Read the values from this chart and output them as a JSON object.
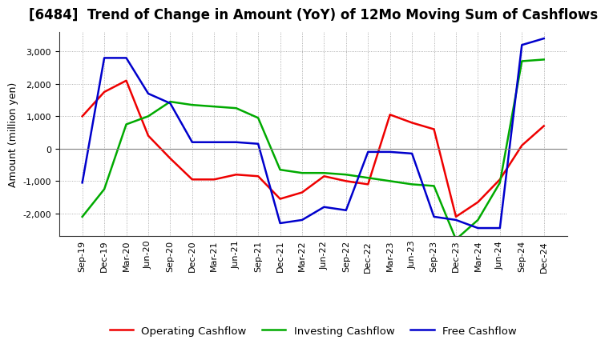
{
  "title": "[6484]  Trend of Change in Amount (YoY) of 12Mo Moving Sum of Cashflows",
  "ylabel": "Amount (million yen)",
  "labels": [
    "Sep-19",
    "Dec-19",
    "Mar-20",
    "Jun-20",
    "Sep-20",
    "Dec-20",
    "Mar-21",
    "Jun-21",
    "Sep-21",
    "Dec-21",
    "Mar-22",
    "Jun-22",
    "Sep-22",
    "Dec-22",
    "Mar-23",
    "Jun-23",
    "Sep-23",
    "Dec-23",
    "Mar-24",
    "Jun-24",
    "Sep-24",
    "Dec-24"
  ],
  "operating": [
    1000,
    1750,
    2100,
    400,
    -300,
    -950,
    -950,
    -800,
    -850,
    -1550,
    -1350,
    -850,
    -1000,
    -1100,
    1050,
    800,
    600,
    -2100,
    -1650,
    -950,
    100,
    700
  ],
  "investing": [
    -2100,
    -1250,
    750,
    1000,
    1450,
    1350,
    1300,
    1250,
    950,
    -650,
    -750,
    -750,
    -800,
    -900,
    -1000,
    -1100,
    -1150,
    -2800,
    -2200,
    -1050,
    2700,
    2750
  ],
  "free": [
    -1050,
    2800,
    2800,
    1700,
    1400,
    200,
    200,
    200,
    150,
    -2300,
    -2200,
    -1800,
    -1900,
    -100,
    -100,
    -150,
    -2100,
    -2200,
    -2450,
    -2450,
    3200,
    3400
  ],
  "operating_color": "#ee0000",
  "investing_color": "#00aa00",
  "free_color": "#0000cc",
  "ylim": [
    -2700,
    3600
  ],
  "yticks": [
    -2000,
    -1000,
    0,
    1000,
    2000,
    3000
  ],
  "bg_color": "#ffffff",
  "grid_color": "#999999",
  "title_fontsize": 12,
  "axis_fontsize": 9,
  "tick_fontsize": 8,
  "legend_fontsize": 9.5,
  "linewidth": 1.8
}
